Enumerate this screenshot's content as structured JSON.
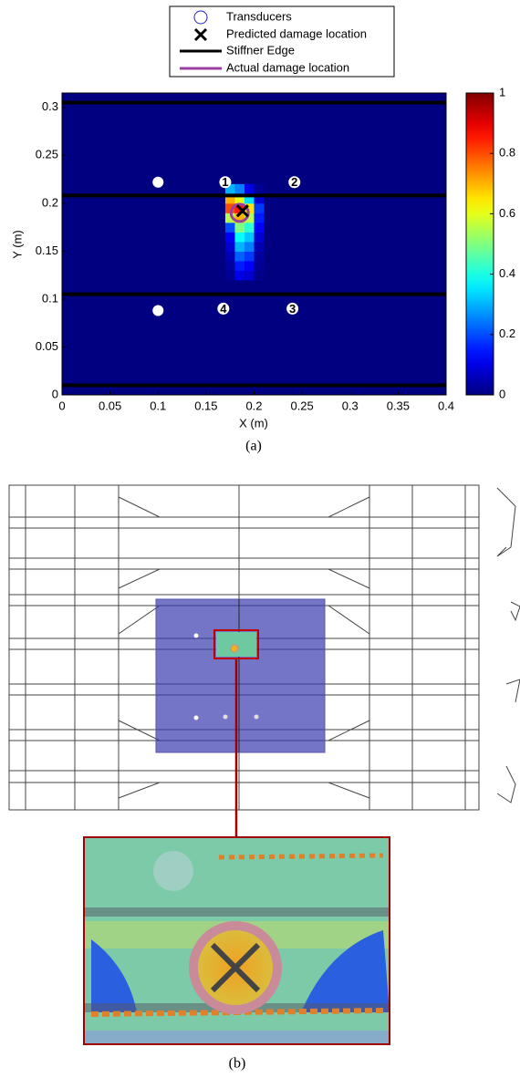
{
  "chart_data": {
    "type": "heatmap",
    "x_label": "X (m)",
    "y_label": "Y (m)",
    "caption": "(a)",
    "xlim": [
      0,
      0.4
    ],
    "xticks": [
      0,
      0.05,
      0.1,
      0.15,
      0.2,
      0.25,
      0.3,
      0.35,
      0.4
    ],
    "ylim": [
      0,
      0.315
    ],
    "yticks": [
      0,
      0.05,
      0.1,
      0.15,
      0.2,
      0.25,
      0.3
    ],
    "clim": [
      0,
      1
    ],
    "cticks": [
      0,
      0.2,
      0.4,
      0.6,
      0.8,
      1
    ],
    "colormap": "jet",
    "cells": {
      "x": [
        0.17,
        0.18,
        0.19,
        0.2,
        0.21
      ],
      "y": [
        0.12,
        0.13,
        0.14,
        0.15,
        0.16,
        0.17,
        0.18,
        0.19,
        0.2,
        0.21,
        0.22
      ],
      "z": [
        [
          0.02,
          0.1,
          0.08,
          0.01
        ],
        [
          0.03,
          0.15,
          0.12,
          0.02
        ],
        [
          0.05,
          0.22,
          0.18,
          0.03
        ],
        [
          0.08,
          0.3,
          0.25,
          0.05
        ],
        [
          0.12,
          0.38,
          0.32,
          0.08
        ],
        [
          0.2,
          0.5,
          0.42,
          0.12
        ],
        [
          0.55,
          0.7,
          0.55,
          0.15
        ],
        [
          0.8,
          0.85,
          0.65,
          0.18
        ],
        [
          0.7,
          0.6,
          0.35,
          0.08
        ],
        [
          0.3,
          0.25,
          0.1,
          0.02
        ]
      ]
    },
    "transducers": {
      "name": "Transducers",
      "color": "#ffffff",
      "legend_color": "#2020c0",
      "x": [
        0.1,
        0.1,
        0.17,
        0.242,
        0.24,
        0.168
      ],
      "y": [
        0.222,
        0.088,
        0.222,
        0.222,
        0.09,
        0.09
      ],
      "labels": [
        null,
        null,
        "1",
        "2",
        "3",
        "4"
      ]
    },
    "predicted": {
      "name": "Predicted damage location",
      "x": 0.188,
      "y": 0.192,
      "color": "#000000"
    },
    "stiffeners": {
      "name": "Stiffner Edge",
      "y": [
        0.01,
        0.105,
        0.208,
        0.305
      ],
      "color": "#000000"
    },
    "actual": {
      "name": "Actual damage location",
      "x": 0.185,
      "y": 0.19,
      "radius": 0.009,
      "color": "#9b3fa0"
    }
  },
  "figure_b": {
    "caption": "(b)"
  }
}
